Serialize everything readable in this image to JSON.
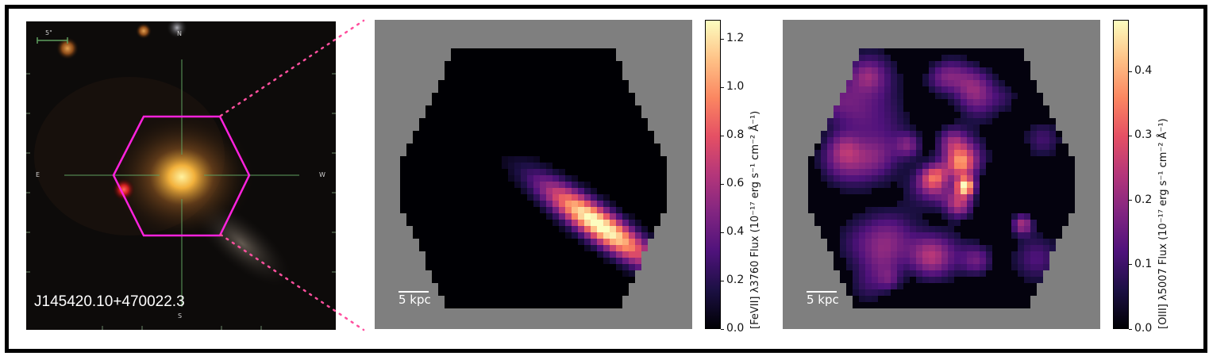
{
  "sdss_panel": {
    "object_name": "J145420.10+470022.3",
    "scale_label": "5\"",
    "compass": {
      "north": "N",
      "south": "S",
      "east": "E",
      "west": "W"
    },
    "hexagon_color": "#ff22dd",
    "connector_color": "#ff4f9e"
  },
  "panel_fevii": {
    "scale_label": "5 kpc",
    "colorbar": {
      "label": "[FeVII] λ3760 Flux (10⁻¹⁷ erg s⁻¹ cm⁻² Å⁻¹)",
      "range": [
        0.0,
        1.28
      ],
      "ticks": [
        "0.0",
        "0.2",
        "0.4",
        "0.6",
        "0.8",
        "1.0",
        "1.2"
      ],
      "tick_values": [
        0.0,
        0.2,
        0.4,
        0.6,
        0.8,
        1.0,
        1.2
      ],
      "colormap": "magma"
    }
  },
  "panel_oiii": {
    "scale_label": "5 kpc",
    "colorbar": {
      "label": "[OIII] λ5007 Flux (10⁻¹⁷ erg s⁻¹ cm⁻² Å⁻¹)",
      "range": [
        0.0,
        0.48
      ],
      "ticks": [
        "0.0",
        "0.1",
        "0.2",
        "0.3",
        "0.4"
      ],
      "tick_values": [
        0.0,
        0.1,
        0.2,
        0.3,
        0.4
      ],
      "colormap": "magma"
    }
  }
}
